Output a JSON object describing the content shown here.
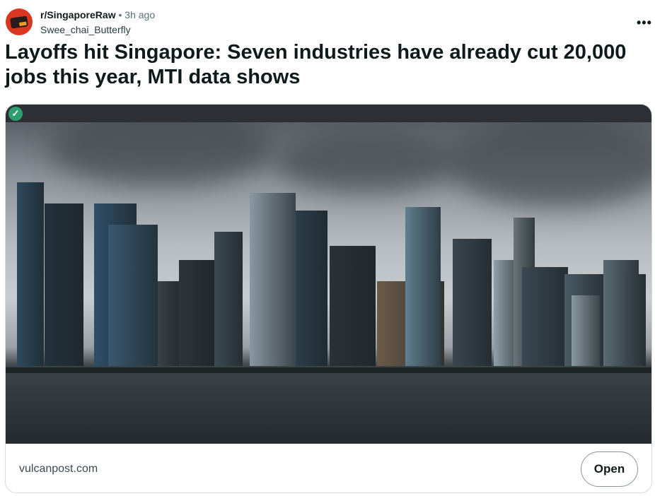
{
  "post": {
    "subreddit": "r/SingaporeRaw",
    "separator": "•",
    "time": "3h ago",
    "author": "Swee_chai_Butterfly",
    "menu_icon": "more-horizontal-icon",
    "menu_label": "•••",
    "title": "Layoffs hit Singapore: Seven industries have already cut 20,000 jobs this year, MTI data shows"
  },
  "link_card": {
    "verified_icon": "check-circle-icon",
    "check_glyph": "✓",
    "domain": "vulcanpost.com",
    "open_label": "Open",
    "accent": "#2f9e6e"
  }
}
